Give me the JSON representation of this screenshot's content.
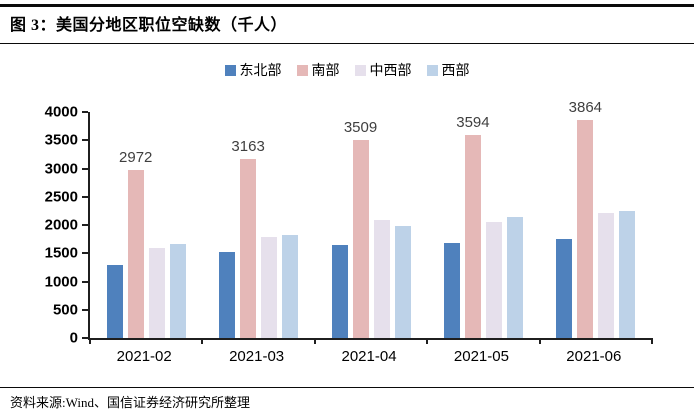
{
  "title": "图 3：美国分地区职位空缺数（千人）",
  "source": "资料来源:Wind、国信证券经济研究所整理",
  "colors": {
    "axis": "#1f1f1f",
    "rule": "#0a0a0a",
    "data_label_text": "#3f3f3f",
    "northeast": "#4F81BD",
    "south": "#E5B8B7",
    "midwest": "#E6E0EC",
    "west": "#BDD2E8"
  },
  "chart_data": {
    "type": "bar",
    "title": "图 3：美国分地区职位空缺数（千人）",
    "xlabel": "",
    "ylabel": "",
    "categories": [
      "2021-02",
      "2021-03",
      "2021-04",
      "2021-05",
      "2021-06"
    ],
    "series": [
      {
        "name": "东北部",
        "key": "northeast",
        "color": "#4F81BD",
        "show_labels": false,
        "values": [
          1300,
          1525,
          1645,
          1690,
          1760
        ]
      },
      {
        "name": "南部",
        "key": "south",
        "color": "#E5B8B7",
        "show_labels": true,
        "values": [
          2972,
          3163,
          3509,
          3594,
          3864
        ]
      },
      {
        "name": "中西部",
        "key": "midwest",
        "color": "#E6E0EC",
        "show_labels": false,
        "values": [
          1595,
          1790,
          2090,
          2060,
          2220
        ]
      },
      {
        "name": "西部",
        "key": "west",
        "color": "#BDD2E8",
        "show_labels": false,
        "values": [
          1670,
          1820,
          1990,
          2140,
          2250
        ]
      }
    ],
    "data_labels_series": "南部",
    "data_labels": [
      2972,
      3163,
      3509,
      3594,
      3864
    ],
    "ylim": [
      0,
      4000
    ],
    "yticks": [
      0,
      500,
      1000,
      1500,
      2000,
      2500,
      3000,
      3500,
      4000
    ],
    "grid": false,
    "legend_position": "top-center"
  }
}
